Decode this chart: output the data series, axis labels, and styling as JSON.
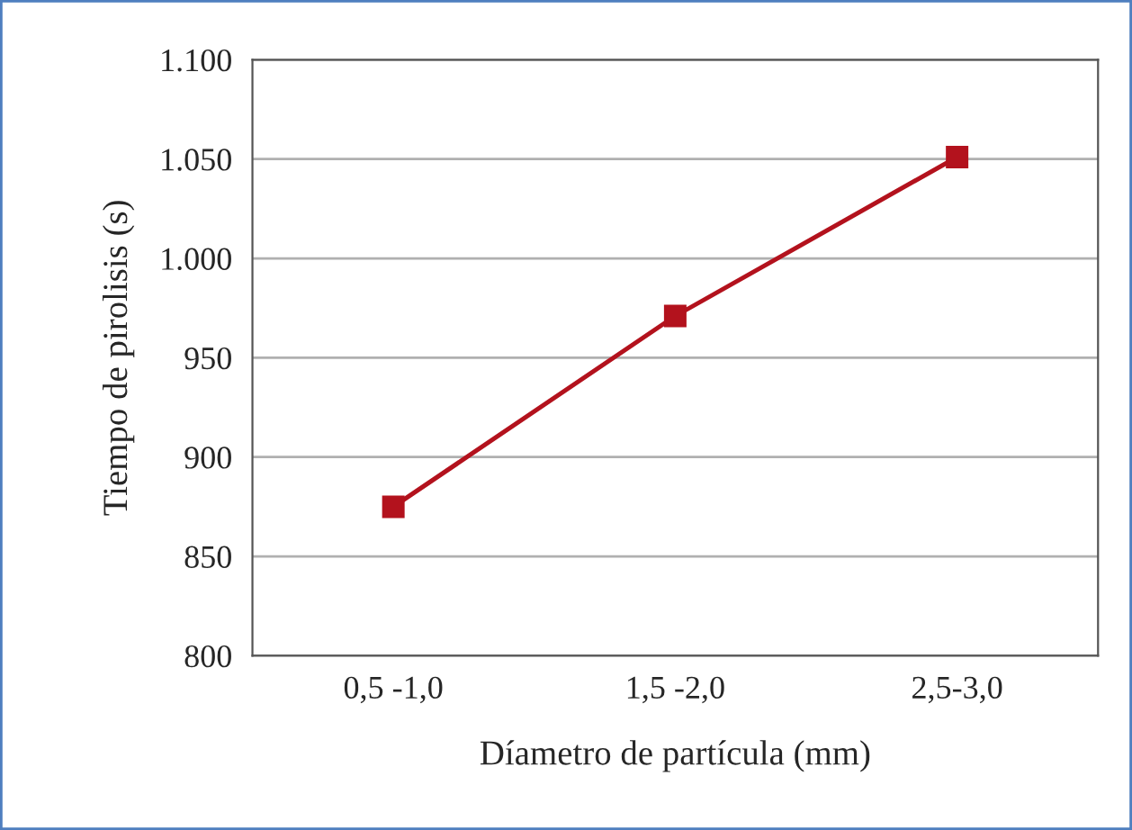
{
  "chart_data": {
    "type": "line",
    "xlabel": "Díametro de partícula (mm)",
    "ylabel": "Tiempo de pirolisis (s)",
    "categories": [
      "0,5 -1,0",
      "1,5 -2,0",
      "2,5-3,0"
    ],
    "series": [
      {
        "color": "#b3121d",
        "values": [
          875,
          971,
          1051
        ]
      }
    ],
    "marker": "square",
    "line_style": "solid",
    "grid": "y",
    "ylim": [
      800,
      1100
    ],
    "yticks": [
      800,
      850,
      900,
      950,
      {
        "value": 1000,
        "label": "1.000"
      },
      {
        "value": 1050,
        "label": "1.050"
      },
      {
        "value": 1100,
        "label": "1.100"
      }
    ]
  }
}
